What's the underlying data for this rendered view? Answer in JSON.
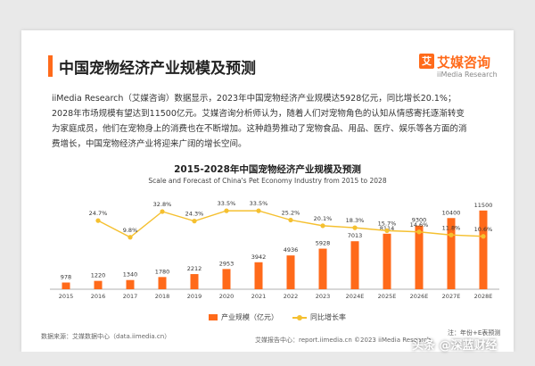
{
  "header": {
    "title": "中国宠物经济产业规模及预测",
    "logo_cn": "艾媒咨询",
    "logo_en": "iiMedia Research",
    "logo_mark": "艾"
  },
  "description": "iiMedia Research（艾媒咨询）数据显示，2023年中国宠物经济产业规模达5928亿元，同比增长20.1%；2028年市场规模有望达到11500亿元。艾媒咨询分析师认为，随着人们对宠物角色的认知从情感寄托逐渐转变为家庭成员，他们在宠物身上的消费也在不断增加。这种趋势推动了宠物食品、用品、医疗、娱乐等各方面的消费增长，中国宠物经济产业将迎来广阔的增长空间。",
  "chart_data": {
    "type": "bar",
    "title": "2015-2028年中国宠物经济产业规模及预测",
    "subtitle": "Scale and Forecast of China's Pet Economy Industry from 2015 to 2028",
    "categories": [
      "2015",
      "2016",
      "2017",
      "2018",
      "2019",
      "2020",
      "2021",
      "2022",
      "2023",
      "2024E",
      "2025E",
      "2026E",
      "2027E",
      "2028E"
    ],
    "series": [
      {
        "name": "产业规模（亿元）",
        "type": "bar",
        "color": "#ff6a1a",
        "values": [
          978,
          1220,
          1340,
          1780,
          2212,
          2953,
          3942,
          4936,
          5928,
          7013,
          8114,
          9300,
          10400,
          11500
        ]
      },
      {
        "name": "同比增长率",
        "type": "line",
        "color": "#f5c030",
        "values": [
          null,
          24.7,
          9.8,
          32.8,
          24.3,
          33.5,
          33.5,
          25.2,
          20.1,
          18.3,
          15.7,
          14.6,
          11.8,
          10.6
        ],
        "labels": [
          "",
          "24.7%",
          "9.8%",
          "32.8%",
          "24.3%",
          "33.5%",
          "33.5%",
          "25.2%",
          "20.1%",
          "18.3%",
          "15.7%",
          "14.6%",
          "11.8%",
          "10.6%"
        ]
      }
    ],
    "ylim_bar": [
      0,
      12000
    ],
    "ylim_line": [
      0,
      40
    ],
    "legend": [
      "产业规模（亿元）",
      "同比增长率"
    ],
    "legend_position": "bottom"
  },
  "note": "注：年份+E表预测",
  "source": "数据来源：艾媒数据中心（data.iimedia.cn）",
  "footer": "艾媒报告中心：report.iimedia.cn  ©2023 iiMedia Research",
  "watermark": "头条 @深蓝财经"
}
